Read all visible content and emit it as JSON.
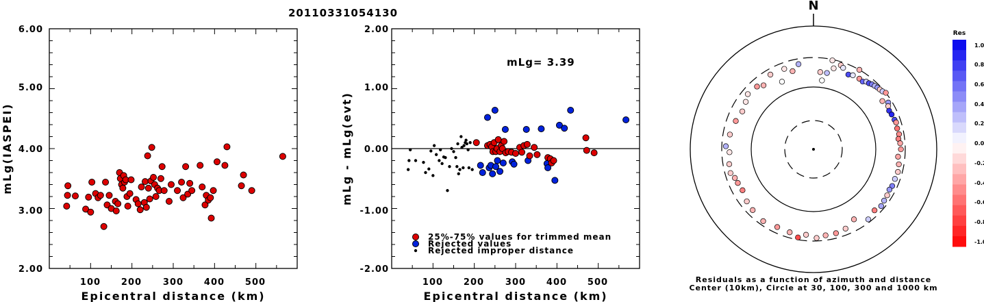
{
  "title": "20110331054130",
  "chart_data": [
    {
      "type": "scatter",
      "xlabel": "Epicentral distance (km)",
      "ylabel": "mLg(IASPEI)",
      "xlim": [
        0,
        600
      ],
      "ylim": [
        2.0,
        6.0
      ],
      "xticks": [
        "100",
        "200",
        "300",
        "400",
        "500"
      ],
      "yticks": [
        "2.00",
        "3.00",
        "4.00",
        "5.00",
        "6.00"
      ],
      "series": [
        {
          "color": "#dd0000",
          "points": [
            [
              42,
              3.04
            ],
            [
              44,
              3.22
            ],
            [
              45,
              3.38
            ],
            [
              63,
              3.21
            ],
            [
              88,
              2.99
            ],
            [
              95,
              3.19
            ],
            [
              100,
              2.94
            ],
            [
              103,
              3.44
            ],
            [
              112,
              3.25
            ],
            [
              118,
              3.18
            ],
            [
              124,
              3.22
            ],
            [
              132,
              2.7
            ],
            [
              136,
              3.44
            ],
            [
              140,
              3.06
            ],
            [
              145,
              3.22
            ],
            [
              150,
              3.0
            ],
            [
              160,
              3.12
            ],
            [
              162,
              2.96
            ],
            [
              166,
              3.08
            ],
            [
              170,
              3.6
            ],
            [
              172,
              3.5
            ],
            [
              175,
              3.4
            ],
            [
              178,
              3.34
            ],
            [
              180,
              3.55
            ],
            [
              182,
              3.44
            ],
            [
              185,
              3.48
            ],
            [
              188,
              3.2
            ],
            [
              190,
              3.04
            ],
            [
              195,
              3.25
            ],
            [
              198,
              3.48
            ],
            [
              210,
              3.15
            ],
            [
              215,
              3.08
            ],
            [
              220,
              2.98
            ],
            [
              223,
              3.36
            ],
            [
              230,
              3.1
            ],
            [
              232,
              3.45
            ],
            [
              235,
              3.02
            ],
            [
              238,
              3.88
            ],
            [
              240,
              3.34
            ],
            [
              243,
              3.16
            ],
            [
              246,
              3.46
            ],
            [
              248,
              4.02
            ],
            [
              252,
              3.52
            ],
            [
              255,
              3.4
            ],
            [
              258,
              3.2
            ],
            [
              262,
              3.34
            ],
            [
              266,
              3.3
            ],
            [
              270,
              3.5
            ],
            [
              273,
              3.7
            ],
            [
              278,
              3.3
            ],
            [
              290,
              3.12
            ],
            [
              295,
              3.4
            ],
            [
              310,
              3.3
            ],
            [
              320,
              3.44
            ],
            [
              324,
              3.18
            ],
            [
              330,
              3.7
            ],
            [
              335,
              3.24
            ],
            [
              340,
              3.42
            ],
            [
              345,
              3.3
            ],
            [
              365,
              3.72
            ],
            [
              370,
              3.36
            ],
            [
              377,
              3.06
            ],
            [
              380,
              3.22
            ],
            [
              385,
              3.14
            ],
            [
              390,
              3.18
            ],
            [
              392,
              2.84
            ],
            [
              397,
              3.3
            ],
            [
              406,
              3.78
            ],
            [
              425,
              3.72
            ],
            [
              430,
              4.03
            ],
            [
              465,
              3.38
            ],
            [
              470,
              3.56
            ],
            [
              490,
              3.3
            ],
            [
              565,
              3.87
            ]
          ]
        }
      ]
    },
    {
      "type": "scatter",
      "xlabel": "Epicentral distance (km)",
      "ylabel": "mLg - mLg(evt)",
      "xlim": [
        0,
        600
      ],
      "ylim": [
        -2.0,
        2.0
      ],
      "xticks": [
        "100",
        "200",
        "300",
        "400",
        "500"
      ],
      "yticks": [
        "-2.00",
        "-1.00",
        "0.00",
        "1.00",
        "2.00"
      ],
      "annotation": "mLg= 3.39",
      "reference_line": 0.0,
      "series": [
        {
          "name": "25%-75% values for trimmed mean",
          "color": "#dd0000",
          "points": [
            [
              205,
              0.1
            ],
            [
              232,
              0.05
            ],
            [
              238,
              0.07
            ],
            [
              242,
              0.03
            ],
            [
              245,
              -0.05
            ],
            [
              248,
              0.1
            ],
            [
              252,
              -0.05
            ],
            [
              255,
              0.0
            ],
            [
              258,
              0.15
            ],
            [
              262,
              -0.05
            ],
            [
              265,
              0.05
            ],
            [
              268,
              0.0
            ],
            [
              272,
              0.12
            ],
            [
              276,
              -0.07
            ],
            [
              282,
              -0.05
            ],
            [
              290,
              -0.06
            ],
            [
              300,
              -0.08
            ],
            [
              310,
              0.02
            ],
            [
              315,
              -0.06
            ],
            [
              320,
              0.05
            ],
            [
              328,
              0.07
            ],
            [
              334,
              -0.12
            ],
            [
              345,
              0.02
            ],
            [
              352,
              -0.1
            ],
            [
              378,
              -0.15
            ],
            [
              384,
              -0.17
            ],
            [
              387,
              -0.24
            ],
            [
              392,
              -0.2
            ],
            [
              470,
              0.18
            ],
            [
              472,
              -0.03
            ],
            [
              490,
              -0.07
            ]
          ]
        },
        {
          "name": "Rejected values",
          "color": "#0022dd",
          "points": [
            [
              215,
              -0.28
            ],
            [
              220,
              -0.4
            ],
            [
              232,
              0.52
            ],
            [
              236,
              -0.32
            ],
            [
              240,
              -0.28
            ],
            [
              244,
              -0.42
            ],
            [
              250,
              0.64
            ],
            [
              252,
              -0.3
            ],
            [
              256,
              -0.2
            ],
            [
              262,
              -0.38
            ],
            [
              270,
              -0.24
            ],
            [
              275,
              0.32
            ],
            [
              292,
              -0.22
            ],
            [
              296,
              -0.26
            ],
            [
              326,
              0.32
            ],
            [
              330,
              -0.2
            ],
            [
              362,
              0.33
            ],
            [
              376,
              -0.25
            ],
            [
              378,
              -0.32
            ],
            [
              395,
              -0.53
            ],
            [
              406,
              0.39
            ],
            [
              418,
              0.34
            ],
            [
              433,
              0.64
            ],
            [
              567,
              0.48
            ]
          ]
        },
        {
          "name": "Rejected improper distance",
          "color": "#000000",
          "points": [
            [
              40,
              -0.35
            ],
            [
              42,
              -0.2
            ],
            [
              45,
              -0.02
            ],
            [
              58,
              -0.2
            ],
            [
              77,
              -0.23
            ],
            [
              82,
              -0.4
            ],
            [
              90,
              -0.34
            ],
            [
              95,
              -0.04
            ],
            [
              100,
              -0.45
            ],
            [
              103,
              0.05
            ],
            [
              108,
              -0.1
            ],
            [
              115,
              -0.2
            ],
            [
              118,
              -0.02
            ],
            [
              122,
              -0.25
            ],
            [
              126,
              -0.14
            ],
            [
              130,
              -0.15
            ],
            [
              135,
              -0.7
            ],
            [
              140,
              -0.3
            ],
            [
              145,
              0.0
            ],
            [
              150,
              -0.05
            ],
            [
              155,
              -0.15
            ],
            [
              158,
              -0.3
            ],
            [
              160,
              0.08
            ],
            [
              162,
              -0.42
            ],
            [
              165,
              -0.35
            ],
            [
              168,
              0.2
            ],
            [
              170,
              0.02
            ],
            [
              173,
              -0.32
            ],
            [
              175,
              0.05
            ],
            [
              178,
              0.1
            ],
            [
              180,
              0.14
            ],
            [
              182,
              0.08
            ],
            [
              185,
              -0.02
            ],
            [
              187,
              -0.32
            ],
            [
              190,
              0.1
            ],
            [
              195,
              -0.35
            ]
          ]
        }
      ]
    },
    {
      "type": "scatter",
      "subtype": "polar-residuals",
      "north_label": "N",
      "caption_line1": "Residuals as a function of azimuth and distance",
      "caption_line2": "Center (10km), Circle at 30, 100, 300 and 1000 km",
      "colorbar": {
        "title": "Res",
        "ticks": [
          "1.0",
          "0.8",
          "0.6",
          "0.4",
          "0.2",
          "0.0",
          "-0.2",
          "-0.4",
          "-0.6",
          "-0.8",
          "-1.0"
        ],
        "positive_color": "#0000ee",
        "negative_color": "#ff0000"
      },
      "points": [
        [
          5,
          176,
          -0.2
        ],
        [
          7,
          130,
          0.0
        ],
        [
          10,
          176,
          0.25
        ],
        [
          12,
          290,
          -0.1
        ],
        [
          14,
          220,
          -0.1
        ],
        [
          18,
          265,
          -0.2
        ],
        [
          20,
          248,
          0.1
        ],
        [
          25,
          212,
          0.7
        ],
        [
          28,
          223,
          0.1
        ],
        [
          30,
          300,
          -0.3
        ],
        [
          33,
          226,
          -0.4
        ],
        [
          36,
          222,
          0.6
        ],
        [
          38,
          240,
          0.2
        ],
        [
          40,
          244,
          0.7
        ],
        [
          42,
          255,
          0.5
        ],
        [
          44,
          262,
          0.3
        ],
        [
          46,
          270,
          0.4
        ],
        [
          48,
          274,
          -0.2
        ],
        [
          50,
          282,
          0.2
        ],
        [
          52,
          300,
          -0.4
        ],
        [
          55,
          225,
          -0.3
        ],
        [
          58,
          262,
          0.4
        ],
        [
          60,
          244,
          -0.2
        ],
        [
          63,
          232,
          0.8
        ],
        [
          66,
          238,
          0.85
        ],
        [
          70,
          244,
          0.7
        ],
        [
          72,
          250,
          -0.4
        ],
        [
          76,
          244,
          -0.55
        ],
        [
          80,
          250,
          -0.45
        ],
        [
          83,
          238,
          -0.5
        ],
        [
          86,
          250,
          -0.35
        ],
        [
          90,
          255,
          -0.4
        ],
        [
          95,
          232,
          -0.35
        ],
        [
          100,
          248,
          -0.3
        ],
        [
          105,
          255,
          -0.2
        ],
        [
          110,
          248,
          0.2
        ],
        [
          115,
          250,
          0.5
        ],
        [
          118,
          242,
          0.4
        ],
        [
          122,
          250,
          -0.2
        ],
        [
          126,
          254,
          0.3
        ],
        [
          130,
          264,
          0.35
        ],
        [
          135,
          245,
          -0.5
        ],
        [
          142,
          270,
          0.2
        ],
        [
          150,
          200,
          -0.3
        ],
        [
          158,
          238,
          -0.2
        ],
        [
          165,
          250,
          -0.4
        ],
        [
          172,
          250,
          -0.3
        ],
        [
          178,
          268,
          -0.2
        ],
        [
          185,
          240,
          -0.2
        ],
        [
          190,
          276,
          -0.7
        ],
        [
          196,
          245,
          -0.3
        ],
        [
          205,
          240,
          -0.4
        ],
        [
          215,
          258,
          -0.3
        ],
        [
          225,
          242,
          -0.3
        ],
        [
          232,
          230,
          -0.2
        ],
        [
          240,
          208,
          -0.5
        ],
        [
          246,
          215,
          -0.4
        ],
        [
          250,
          222,
          -0.3
        ],
        [
          254,
          245,
          -0.2
        ],
        [
          260,
          238,
          -0.2
        ],
        [
          268,
          225,
          -0.1
        ],
        [
          272,
          258,
          0.3
        ],
        [
          280,
          232,
          -0.2
        ],
        [
          290,
          214,
          -0.4
        ],
        [
          298,
          198,
          -0.2
        ],
        [
          305,
          214,
          -0.1
        ],
        [
          310,
          240,
          -0.1
        ],
        [
          318,
          228,
          -0.4
        ],
        [
          322,
          202,
          -0.3
        ],
        [
          330,
          244,
          -0.2
        ],
        [
          335,
          158,
          0.0
        ],
        [
          340,
          238,
          -0.1
        ],
        [
          345,
          200,
          -0.3
        ],
        [
          350,
          246,
          0.3
        ]
      ]
    }
  ]
}
